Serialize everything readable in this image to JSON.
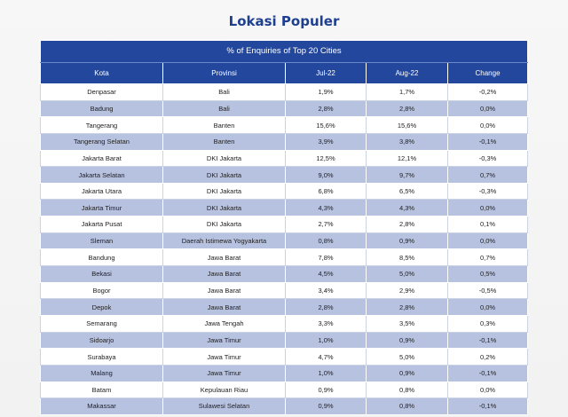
{
  "page": {
    "title": "Lokasi Populer"
  },
  "table": {
    "caption": "% of Enquiries of Top 20 Cities",
    "columns": [
      "Kota",
      "Provinsi",
      "Jul-22",
      "Aug-22",
      "Change"
    ],
    "rows": [
      [
        "Denpasar",
        "Bali",
        "1,9%",
        "1,7%",
        "-0,2%"
      ],
      [
        "Badung",
        "Bali",
        "2,8%",
        "2,8%",
        "0,0%"
      ],
      [
        "Tangerang",
        "Banten",
        "15,6%",
        "15,6%",
        "0,0%"
      ],
      [
        "Tangerang Selatan",
        "Banten",
        "3,9%",
        "3,8%",
        "-0,1%"
      ],
      [
        "Jakarta Barat",
        "DKI Jakarta",
        "12,5%",
        "12,1%",
        "-0,3%"
      ],
      [
        "Jakarta Selatan",
        "DKI Jakarta",
        "9,0%",
        "9,7%",
        "0,7%"
      ],
      [
        "Jakarta Utara",
        "DKI Jakarta",
        "6,8%",
        "6,5%",
        "-0,3%"
      ],
      [
        "Jakarta Timur",
        "DKI Jakarta",
        "4,3%",
        "4,3%",
        "0,0%"
      ],
      [
        "Jakarta Pusat",
        "DKI Jakarta",
        "2,7%",
        "2,8%",
        "0,1%"
      ],
      [
        "Sleman",
        "Daerah Istimewa Yogyakarta",
        "0,8%",
        "0,9%",
        "0,0%"
      ],
      [
        "Bandung",
        "Jawa Barat",
        "7,8%",
        "8,5%",
        "0,7%"
      ],
      [
        "Bekasi",
        "Jawa Barat",
        "4,5%",
        "5,0%",
        "0,5%"
      ],
      [
        "Bogor",
        "Jawa Barat",
        "3,4%",
        "2,9%",
        "-0,5%"
      ],
      [
        "Depok",
        "Jawa Barat",
        "2,8%",
        "2,8%",
        "0,0%"
      ],
      [
        "Semarang",
        "Jawa Tengah",
        "3,3%",
        "3,5%",
        "0,3%"
      ],
      [
        "Sidoarjo",
        "Jawa Timur",
        "1,0%",
        "0,9%",
        "-0,1%"
      ],
      [
        "Surabaya",
        "Jawa Timur",
        "4,7%",
        "5,0%",
        "0,2%"
      ],
      [
        "Malang",
        "Jawa Timur",
        "1,0%",
        "0,9%",
        "-0,1%"
      ],
      [
        "Batam",
        "Kepulauan Riau",
        "0,9%",
        "0,8%",
        "0,0%"
      ],
      [
        "Makassar",
        "Sulawesi Selatan",
        "0,9%",
        "0,8%",
        "-0,1%"
      ]
    ]
  }
}
